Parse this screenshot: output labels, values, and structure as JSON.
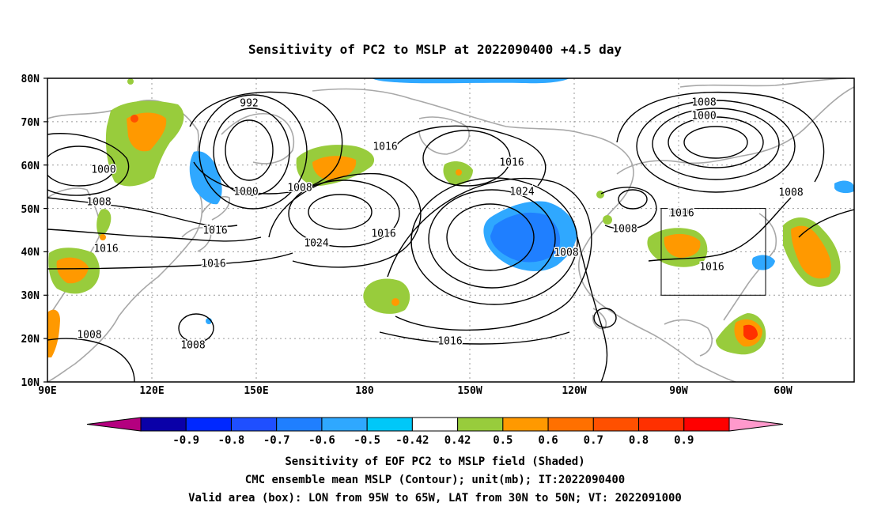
{
  "title": "Sensitivity of PC2 to MSLP at 2022090400 +4.5 day",
  "lat_labels": [
    "80N",
    "70N",
    "60N",
    "50N",
    "40N",
    "30N",
    "20N",
    "10N"
  ],
  "lon_labels": [
    "90E",
    "120E",
    "150E",
    "180",
    "150W",
    "120W",
    "90W",
    "60W"
  ],
  "contour_labels": [
    {
      "text": "992"
    },
    {
      "text": "1000"
    },
    {
      "text": "1008"
    },
    {
      "text": "1016"
    },
    {
      "text": "1016"
    },
    {
      "text": "1000"
    },
    {
      "text": "1008"
    },
    {
      "text": "1016"
    },
    {
      "text": "1016"
    },
    {
      "text": "1024"
    },
    {
      "text": "1016"
    },
    {
      "text": "1008"
    },
    {
      "text": "1008"
    },
    {
      "text": "1016"
    },
    {
      "text": "1024"
    },
    {
      "text": "1008"
    },
    {
      "text": "1016"
    },
    {
      "text": "1016"
    },
    {
      "text": "1008"
    },
    {
      "text": "1000"
    },
    {
      "text": "1008"
    },
    {
      "text": "1016"
    },
    {
      "text": "1016"
    },
    {
      "text": "1008"
    }
  ],
  "colorbar": {
    "colors": [
      "#b4007f",
      "#0a00a8",
      "#0028ff",
      "#1f4fff",
      "#1f7fff",
      "#2fa8ff",
      "#00c8f8",
      "#ffffff",
      "#98cc3c",
      "#ff9900",
      "#ff7000",
      "#ff5000",
      "#ff3000",
      "#ff0000",
      "#ff99cc"
    ],
    "labels": [
      "-0.9",
      "-0.8",
      "-0.7",
      "-0.6",
      "-0.5",
      "-0.42",
      "0.42",
      "0.5",
      "0.6",
      "0.7",
      "0.8",
      "0.9"
    ]
  },
  "caption": {
    "line1": "Sensitivity of EOF PC2 to MSLP field (Shaded)",
    "line2": "CMC ensemble mean MSLP (Contour); unit(mb); IT:2022090400",
    "line3": "Valid area (box): LON from 95W to 65W, LAT from 30N to 50N; VT: 2022091000"
  }
}
